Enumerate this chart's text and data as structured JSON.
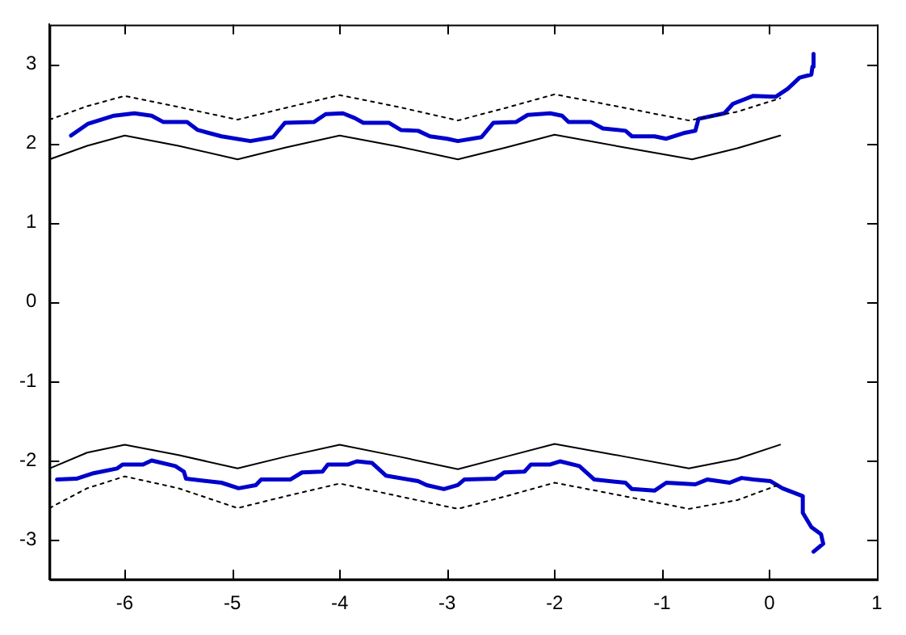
{
  "chart_data": {
    "type": "line",
    "xlim": [
      -6.7,
      1
    ],
    "ylim": [
      -3.5,
      3.5
    ],
    "xticks": [
      -6,
      -5,
      -4,
      -3,
      -2,
      -1,
      0,
      1
    ],
    "yticks": [
      -3,
      -2,
      -1,
      0,
      1,
      2,
      3
    ],
    "grid": false,
    "legend": false,
    "marker": "none",
    "series": [
      {
        "color": "#000000",
        "line_style": "solid",
        "x": [
          -6.7,
          -6.35,
          -6.0,
          -5.5,
          -4.95,
          -4.5,
          -4.0,
          -3.45,
          -2.9,
          -2.45,
          -2.0,
          -1.35,
          -0.72,
          -0.3,
          0.1
        ],
        "values": [
          1.8,
          1.97,
          2.1,
          1.97,
          1.8,
          1.95,
          2.1,
          1.96,
          1.8,
          1.95,
          2.11,
          1.95,
          1.8,
          1.94,
          2.1
        ]
      },
      {
        "color": "#000000",
        "line_style": "dotted",
        "x": [
          -6.7,
          -6.35,
          -6.0,
          -5.5,
          -4.95,
          -4.5,
          -4.0,
          -3.45,
          -2.9,
          -2.45,
          -2.0,
          -1.35,
          -0.75,
          -0.3,
          0.1
        ],
        "values": [
          2.3,
          2.47,
          2.6,
          2.46,
          2.3,
          2.45,
          2.61,
          2.46,
          2.29,
          2.45,
          2.62,
          2.45,
          2.29,
          2.4,
          2.57
        ]
      },
      {
        "color": "#000000",
        "line_style": "solid",
        "x": [
          -6.7,
          -6.35,
          -6.0,
          -5.5,
          -4.95,
          -4.5,
          -4.0,
          -3.45,
          -2.9,
          -2.45,
          -2.0,
          -1.35,
          -0.75,
          -0.3,
          0.1
        ],
        "values": [
          -2.1,
          -1.9,
          -1.8,
          -1.93,
          -2.1,
          -1.95,
          -1.8,
          -1.95,
          -2.11,
          -1.95,
          -1.79,
          -1.95,
          -2.1,
          -1.98,
          -1.8
        ]
      },
      {
        "color": "#000000",
        "line_style": "dotted",
        "x": [
          -6.7,
          -6.35,
          -6.0,
          -5.5,
          -4.95,
          -4.5,
          -4.0,
          -3.45,
          -2.9,
          -2.45,
          -2.0,
          -1.35,
          -0.75,
          -0.3,
          0.1
        ],
        "values": [
          -2.6,
          -2.35,
          -2.2,
          -2.35,
          -2.6,
          -2.45,
          -2.29,
          -2.45,
          -2.61,
          -2.45,
          -2.28,
          -2.45,
          -2.61,
          -2.5,
          -2.3
        ]
      },
      {
        "color": "#0000cc",
        "line_style": "solid",
        "x": [
          -6.5,
          -6.34,
          -6.1,
          -5.91,
          -5.75,
          -5.64,
          -5.42,
          -5.32,
          -5.1,
          -4.83,
          -4.62,
          -4.51,
          -4.24,
          -4.13,
          -3.97,
          -3.86,
          -3.78,
          -3.54,
          -3.43,
          -3.27,
          -3.16,
          -3.0,
          -2.9,
          -2.68,
          -2.57,
          -2.36,
          -2.25,
          -2.04,
          -1.93,
          -1.87,
          -1.66,
          -1.55,
          -1.34,
          -1.28,
          -1.07,
          -0.96,
          -0.8,
          -0.69,
          -0.66,
          -0.42,
          -0.34,
          -0.15,
          0.06,
          0.17,
          0.28,
          0.39,
          0.4,
          0.41
        ],
        "values": [
          2.1,
          2.25,
          2.35,
          2.38,
          2.35,
          2.27,
          2.27,
          2.17,
          2.09,
          2.03,
          2.08,
          2.26,
          2.27,
          2.37,
          2.38,
          2.32,
          2.26,
          2.26,
          2.17,
          2.16,
          2.09,
          2.06,
          2.03,
          2.08,
          2.26,
          2.27,
          2.36,
          2.38,
          2.35,
          2.27,
          2.27,
          2.19,
          2.16,
          2.09,
          2.09,
          2.06,
          2.13,
          2.16,
          2.31,
          2.38,
          2.5,
          2.6,
          2.59,
          2.69,
          2.83,
          2.87,
          2.97,
          3.13
        ]
      },
      {
        "color": "#0000cc",
        "line_style": "solid",
        "x": [
          -6.63,
          -6.45,
          -6.29,
          -6.07,
          -6.02,
          -5.83,
          -5.75,
          -5.53,
          -5.45,
          -5.43,
          -5.1,
          -4.94,
          -4.78,
          -4.73,
          -4.46,
          -4.35,
          -4.16,
          -4.11,
          -3.92,
          -3.84,
          -3.7,
          -3.57,
          -3.27,
          -3.19,
          -3.03,
          -2.9,
          -2.84,
          -2.55,
          -2.47,
          -2.28,
          -2.22,
          -2.04,
          -1.95,
          -1.77,
          -1.63,
          -1.34,
          -1.28,
          -1.07,
          -0.96,
          -0.69,
          -0.58,
          -0.37,
          -0.26,
          -0.15,
          0.01,
          0.12,
          0.31,
          0.31,
          0.39,
          0.48,
          0.5,
          0.41
        ],
        "values": [
          -2.24,
          -2.23,
          -2.16,
          -2.1,
          -2.05,
          -2.05,
          -2.0,
          -2.07,
          -2.14,
          -2.23,
          -2.28,
          -2.35,
          -2.31,
          -2.24,
          -2.24,
          -2.15,
          -2.14,
          -2.05,
          -2.05,
          -2.01,
          -2.03,
          -2.19,
          -2.26,
          -2.31,
          -2.36,
          -2.31,
          -2.24,
          -2.23,
          -2.15,
          -2.14,
          -2.05,
          -2.05,
          -2.01,
          -2.07,
          -2.24,
          -2.28,
          -2.36,
          -2.38,
          -2.28,
          -2.3,
          -2.24,
          -2.28,
          -2.22,
          -2.24,
          -2.26,
          -2.35,
          -2.45,
          -2.66,
          -2.84,
          -2.93,
          -3.05,
          -3.15
        ]
      }
    ]
  }
}
